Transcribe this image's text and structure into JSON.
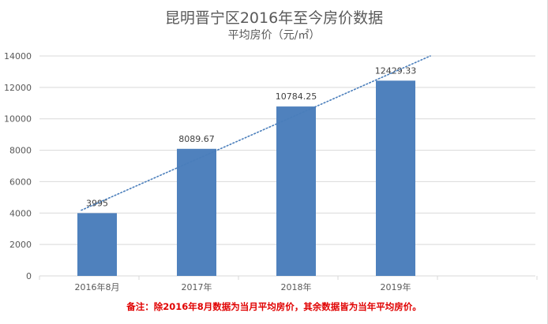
{
  "chart_data": {
    "type": "bar",
    "title": "昆明晋宁区2016年至今房价数据",
    "subtitle": "平均房价（元/㎡）",
    "categories": [
      "2016年8月",
      "2017年",
      "2018年",
      "2019年"
    ],
    "values": [
      3995,
      8089.67,
      10784.25,
      12429.33
    ],
    "data_labels": [
      "3995",
      "8089.67",
      "10784.25",
      "12429.33"
    ],
    "ylim": [
      0,
      14000
    ],
    "y_ticks": [
      "0",
      "2000",
      "4000",
      "6000",
      "8000",
      "10000",
      "12000",
      "14000"
    ],
    "grid": true,
    "trendline": "linear, dotted",
    "colors": {
      "bar": "#4f81bd",
      "trendline": "#4a7ebb",
      "grid": "#d9d9d9",
      "axis_text": "#595959"
    }
  },
  "note": "备注：除2016年8月数据为当月平均房价，其余数据皆为当年平均房价。"
}
